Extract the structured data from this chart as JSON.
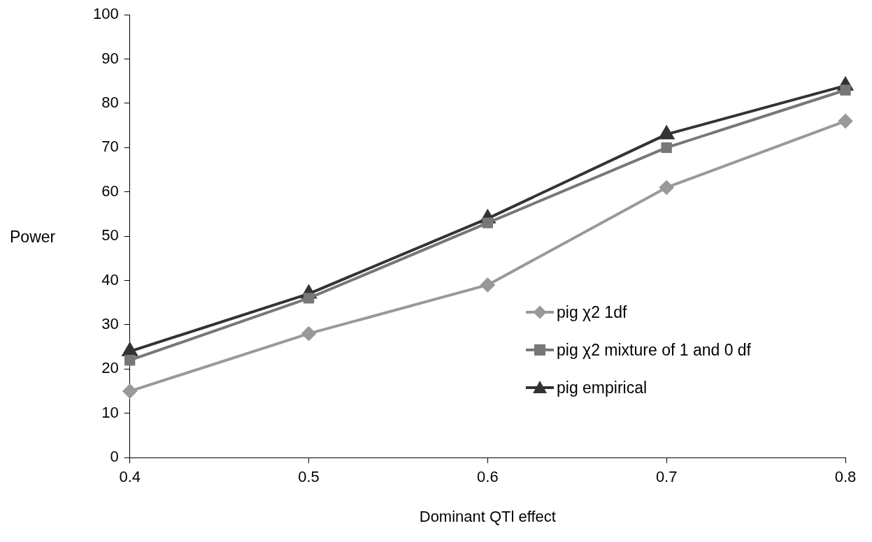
{
  "chart_data": {
    "type": "line",
    "xlabel": "Dominant QTl effect",
    "ylabel": "Power",
    "x": [
      0.4,
      0.5,
      0.6,
      0.7,
      0.8
    ],
    "series": [
      {
        "name": "pig  χ2 1df",
        "color": "#999999",
        "marker": "diamond",
        "values": [
          15,
          28,
          39,
          61,
          76
        ]
      },
      {
        "name": "pig  χ2 mixture of 1 and 0 df",
        "color": "#777777",
        "marker": "square",
        "values": [
          22,
          36,
          53,
          70,
          83
        ]
      },
      {
        "name": "pig empirical",
        "color": "#333333",
        "marker": "triangle",
        "values": [
          24,
          37,
          54,
          73,
          84
        ]
      }
    ],
    "xlim": [
      0.4,
      0.8
    ],
    "xticks": [
      0.4,
      0.5,
      0.6,
      0.7,
      0.8
    ],
    "ylim": [
      0,
      100
    ],
    "yticks": [
      0,
      10,
      20,
      30,
      40,
      50,
      60,
      70,
      80,
      90,
      100
    ],
    "grid": false,
    "legend": "right",
    "line_style": "solid"
  }
}
